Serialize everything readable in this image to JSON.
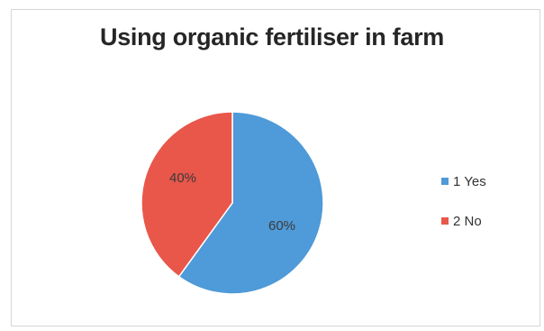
{
  "chart_data": {
    "type": "pie",
    "title": "Using organic fertiliser in farm",
    "categories": [
      "1 Yes",
      "2 No"
    ],
    "values": [
      60,
      40
    ],
    "data_labels": [
      "60%",
      "40%"
    ],
    "colors": [
      "#4f9ad8",
      "#e8574a"
    ],
    "legend_position": "right",
    "start_angle_deg": 0,
    "direction": "clockwise"
  }
}
